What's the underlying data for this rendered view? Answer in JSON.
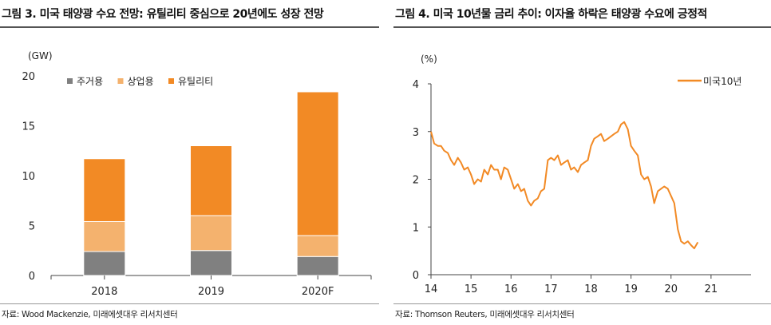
{
  "left": {
    "title": "그림 3. 미국 태양광 수요 전망: 유틸리티 중심으로 20년에도 성장 전망",
    "source": "자료: Wood Mackenzie, 미래에셋대우 리서치센터"
  },
  "right": {
    "title": "그림 4. 미국 10년물 금리 추이: 이자율 하락은 태양광 수요에 긍정적",
    "source": "자료: Thomson Reuters, 미래에셋대우 리서치센터"
  },
  "chart_data": [
    {
      "type": "bar",
      "stacked": true,
      "ylabel": "(GW)",
      "ylim": [
        0,
        20
      ],
      "yticks": [
        0,
        5,
        10,
        15,
        20
      ],
      "categories": [
        "2018",
        "2019",
        "2020F"
      ],
      "series": [
        {
          "name": "주거용",
          "color": "#808080",
          "values": [
            2.4,
            2.5,
            1.9
          ]
        },
        {
          "name": "상업용",
          "color": "#f4b26e",
          "values": [
            3.0,
            3.5,
            2.1
          ]
        },
        {
          "name": "유틸리티",
          "color": "#f28a25",
          "values": [
            6.3,
            7.0,
            14.4
          ]
        }
      ],
      "legend": "top-left",
      "grid": false
    },
    {
      "type": "line",
      "ylabel": "(%)",
      "ylim": [
        0,
        4
      ],
      "yticks": [
        0,
        1,
        2,
        3,
        4
      ],
      "xlim": [
        14,
        22
      ],
      "xticks": [
        "14",
        "15",
        "16",
        "17",
        "18",
        "19",
        "20",
        "21"
      ],
      "series": [
        {
          "name": "미국10년",
          "color": "#f28a25",
          "x": [
            14.0,
            14.08,
            14.17,
            14.25,
            14.33,
            14.42,
            14.5,
            14.58,
            14.67,
            14.75,
            14.83,
            14.92,
            15.0,
            15.08,
            15.17,
            15.25,
            15.33,
            15.42,
            15.5,
            15.58,
            15.67,
            15.75,
            15.83,
            15.92,
            16.0,
            16.08,
            16.17,
            16.25,
            16.33,
            16.42,
            16.5,
            16.58,
            16.67,
            16.75,
            16.83,
            16.92,
            17.0,
            17.08,
            17.17,
            17.25,
            17.33,
            17.42,
            17.5,
            17.58,
            17.67,
            17.75,
            17.83,
            17.92,
            18.0,
            18.08,
            18.17,
            18.25,
            18.33,
            18.42,
            18.5,
            18.58,
            18.67,
            18.75,
            18.83,
            18.92,
            19.0,
            19.08,
            19.17,
            19.25,
            19.33,
            19.42,
            19.5,
            19.58,
            19.67,
            19.75,
            19.83,
            19.92,
            20.0,
            20.08,
            20.17,
            20.25,
            20.33,
            20.42,
            20.5,
            20.58,
            20.67
          ],
          "values": [
            3.0,
            2.75,
            2.7,
            2.7,
            2.6,
            2.55,
            2.4,
            2.3,
            2.45,
            2.35,
            2.2,
            2.25,
            2.1,
            1.9,
            2.0,
            1.95,
            2.2,
            2.1,
            2.3,
            2.2,
            2.2,
            2.0,
            2.25,
            2.2,
            2.0,
            1.8,
            1.9,
            1.75,
            1.8,
            1.55,
            1.45,
            1.55,
            1.6,
            1.75,
            1.8,
            2.4,
            2.45,
            2.4,
            2.5,
            2.3,
            2.35,
            2.4,
            2.2,
            2.25,
            2.15,
            2.3,
            2.35,
            2.4,
            2.7,
            2.85,
            2.9,
            2.95,
            2.8,
            2.85,
            2.9,
            2.95,
            3.0,
            3.15,
            3.2,
            3.05,
            2.7,
            2.6,
            2.5,
            2.1,
            2.0,
            2.05,
            1.85,
            1.5,
            1.75,
            1.8,
            1.85,
            1.8,
            1.65,
            1.5,
            0.95,
            0.7,
            0.65,
            0.7,
            0.62,
            0.55,
            0.68
          ]
        }
      ],
      "legend": "top-right",
      "grid": false
    }
  ]
}
